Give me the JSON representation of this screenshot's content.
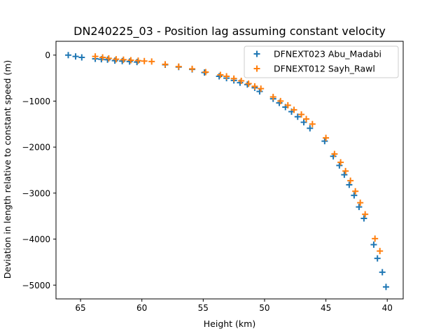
{
  "chart_data": {
    "type": "scatter",
    "title": "DN240225_03 - Position lag assuming constant velocity",
    "xlabel": "Height (km)",
    "ylabel": "Deviation in length relative to constant speed (m)",
    "xlim": [
      67.0,
      38.7
    ],
    "ylim": [
      -5300,
      300
    ],
    "x_reversed": true,
    "xticks": [
      65,
      60,
      55,
      50,
      45,
      40
    ],
    "yticks": [
      0,
      -1000,
      -2000,
      -3000,
      -4000,
      -5000
    ],
    "xtick_labels": [
      "65",
      "60",
      "55",
      "50",
      "45",
      "40"
    ],
    "ytick_labels": [
      "0",
      "−1000",
      "−2000",
      "−3000",
      "−4000",
      "−5000"
    ],
    "grid": false,
    "legend_position": "top-right",
    "marker": "plus",
    "series": [
      {
        "name": "DFNEXT023 Abu_Madabi",
        "color": "#1f77b4",
        "x": [
          66.0,
          65.4,
          64.9,
          63.8,
          63.3,
          62.8,
          62.2,
          61.6,
          61.0,
          60.4,
          58.1,
          57.0,
          55.9,
          54.9,
          53.7,
          53.1,
          52.5,
          52.0,
          51.4,
          50.8,
          50.4,
          49.3,
          48.8,
          48.3,
          47.8,
          47.3,
          46.8,
          46.3,
          45.1,
          44.4,
          43.9,
          43.5,
          43.1,
          42.7,
          42.3,
          41.9,
          41.1,
          40.8,
          40.4,
          40.1
        ],
        "y": [
          0,
          -30,
          -50,
          -80,
          -90,
          -100,
          -120,
          -130,
          -140,
          -150,
          -210,
          -260,
          -310,
          -380,
          -460,
          -500,
          -550,
          -600,
          -640,
          -710,
          -790,
          -950,
          -1040,
          -1130,
          -1230,
          -1340,
          -1460,
          -1590,
          -1870,
          -2200,
          -2400,
          -2600,
          -2820,
          -3050,
          -3300,
          -3550,
          -4120,
          -4420,
          -4720,
          -5040
        ]
      },
      {
        "name": "DFNEXT012 Sayh_Rawl",
        "color": "#ff7f0e",
        "x": [
          63.8,
          63.2,
          62.7,
          62.1,
          61.5,
          60.9,
          60.3,
          59.8,
          59.2,
          58.1,
          57.0,
          55.9,
          54.8,
          53.6,
          53.1,
          52.5,
          51.9,
          51.3,
          50.8,
          50.3,
          49.3,
          48.7,
          48.1,
          47.6,
          47.0,
          46.6,
          46.1,
          45.0,
          44.3,
          43.8,
          43.4,
          43.0,
          42.6,
          42.2,
          41.8,
          41.0,
          40.6
        ],
        "y": [
          -30,
          -50,
          -70,
          -90,
          -100,
          -110,
          -120,
          -130,
          -140,
          -200,
          -250,
          -300,
          -370,
          -430,
          -460,
          -510,
          -560,
          -620,
          -680,
          -730,
          -910,
          -1000,
          -1090,
          -1190,
          -1290,
          -1390,
          -1500,
          -1800,
          -2150,
          -2330,
          -2520,
          -2730,
          -2960,
          -3210,
          -3460,
          -3990,
          -4260
        ]
      }
    ]
  }
}
